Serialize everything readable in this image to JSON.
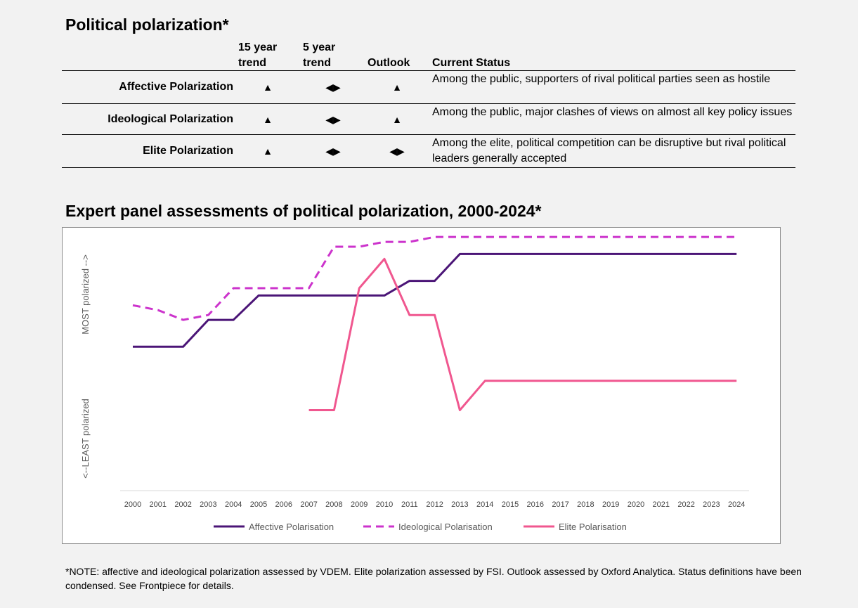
{
  "header": {
    "title": "Political polarization*"
  },
  "table": {
    "columns": {
      "trend15": [
        "15 year",
        "trend"
      ],
      "trend5": [
        "5 year",
        "trend"
      ],
      "outlook": "Outlook",
      "status": "Current Status"
    },
    "rows": [
      {
        "label": "Affective Polarization",
        "trend15": "▲",
        "trend5": "◀▶",
        "outlook": "▲",
        "status": "Among the public, supporters of rival political parties seen as hostile"
      },
      {
        "label": "Ideological Polarization",
        "trend15": "▲",
        "trend5": "◀▶",
        "outlook": "▲",
        "status": "Among the public, major clashes of views on almost all key policy issues"
      },
      {
        "label": "Elite Polarization",
        "trend15": "▲",
        "trend5": "◀▶",
        "outlook": "◀▶",
        "status": "Among the elite, political competition can be disruptive but rival political leaders generally accepted"
      }
    ]
  },
  "chart_title": "Expert panel assessments of political polarization, 2000-2024*",
  "chart_data": {
    "type": "line",
    "x": [
      2000,
      2001,
      2002,
      2003,
      2004,
      2005,
      2006,
      2007,
      2008,
      2009,
      2010,
      2011,
      2012,
      2013,
      2014,
      2015,
      2016,
      2017,
      2018,
      2019,
      2020,
      2021,
      2022,
      2023,
      2024
    ],
    "y_axis_labels": {
      "bottom": "<--LEAST polarized",
      "top": "MOST polarized -->"
    },
    "ylim": [
      0,
      100
    ],
    "grid": false,
    "legend_position": "bottom",
    "series": [
      {
        "name": "Affective Polarisation",
        "color": "#4b1577",
        "style": "solid",
        "values": [
          59,
          59,
          59,
          70,
          70,
          80,
          80,
          80,
          80,
          80,
          80,
          86,
          86,
          97,
          97,
          97,
          97,
          97,
          97,
          97,
          97,
          97,
          97,
          97,
          97
        ]
      },
      {
        "name": "Ideological Polarisation",
        "color": "#cc33cc",
        "style": "dashed",
        "values": [
          76,
          74,
          70,
          72,
          83,
          83,
          83,
          83,
          100,
          100,
          102,
          102,
          104,
          104,
          104,
          104,
          104,
          104,
          104,
          104,
          104,
          104,
          104,
          104,
          104
        ]
      },
      {
        "name": "Elite Polarisation",
        "color": "#f0578f",
        "style": "solid",
        "values": [
          null,
          null,
          null,
          null,
          null,
          null,
          null,
          33,
          33,
          83,
          95,
          72,
          72,
          33,
          45,
          45,
          45,
          45,
          45,
          45,
          45,
          45,
          45,
          45,
          45
        ]
      }
    ]
  },
  "footnote": "*NOTE: affective and ideological polarization assessed by VDEM. Elite polarization assessed by FSI. Outlook assessed by Oxford Analytica. Status definitions have been condensed. See Frontpiece for details."
}
